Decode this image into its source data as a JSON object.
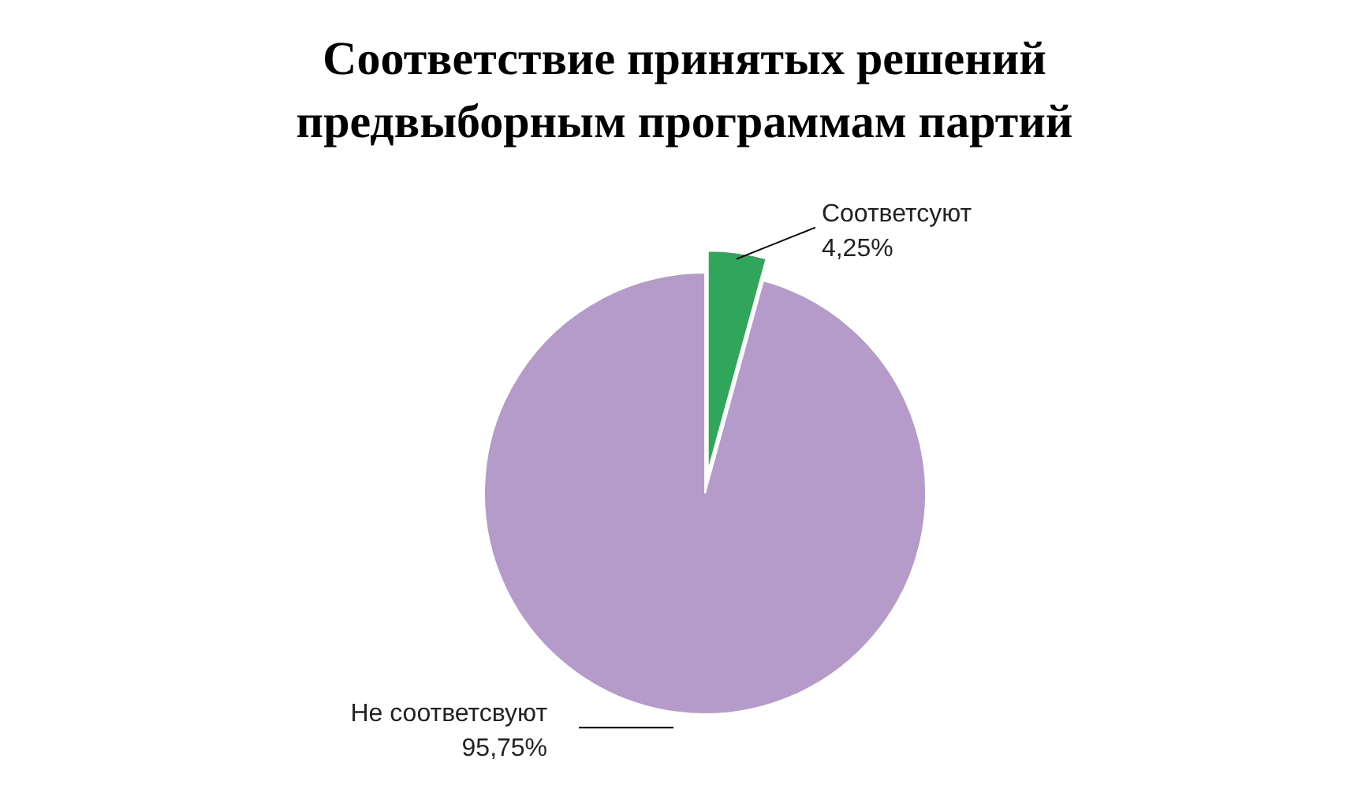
{
  "chart_data": {
    "type": "pie",
    "title": "Соответствие принятых решений\nпредвыборным программам партий",
    "categories": [
      "Соответсуют",
      "Не соответсвуют"
    ],
    "values": [
      4.25,
      95.75
    ],
    "colors": [
      "#2fa65a",
      "#b49bc9"
    ],
    "value_labels": [
      "4,25%",
      "95,75%"
    ],
    "legend": false
  }
}
